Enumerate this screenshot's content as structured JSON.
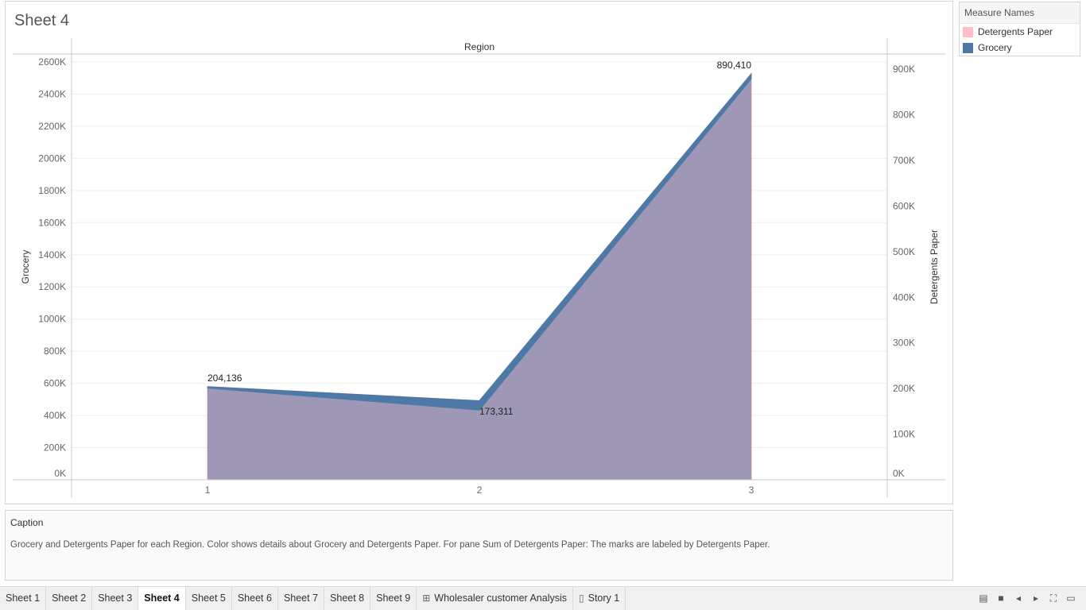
{
  "sheet": {
    "title": "Sheet 4"
  },
  "chart_data": {
    "type": "area",
    "title": "",
    "column_header": "Region",
    "x": [
      1,
      2,
      3
    ],
    "x_tick_labels": [
      "1",
      "2",
      "3"
    ],
    "y_left": {
      "label": "Grocery",
      "ylim": [
        0,
        2600000
      ],
      "ticks": [
        0,
        200000,
        400000,
        600000,
        800000,
        1000000,
        1200000,
        1400000,
        1600000,
        1800000,
        2000000,
        2200000,
        2400000,
        2600000
      ],
      "tick_labels": [
        "0K",
        "200K",
        "400K",
        "600K",
        "800K",
        "1000K",
        "1200K",
        "1400K",
        "1600K",
        "1800K",
        "2000K",
        "2200K",
        "2400K",
        "2600K"
      ]
    },
    "y_right": {
      "label": "Detergents Paper",
      "ylim": [
        0,
        930000
      ],
      "ticks": [
        0,
        100000,
        200000,
        300000,
        400000,
        500000,
        600000,
        700000,
        800000,
        900000
      ],
      "tick_labels": [
        "0K",
        "100K",
        "200K",
        "300K",
        "400K",
        "500K",
        "600K",
        "700K",
        "800K",
        "900K"
      ]
    },
    "series": [
      {
        "name": "Detergents Paper",
        "axis": "right",
        "color": "#ffbec7",
        "values": [
          204136,
          173311,
          890410
        ],
        "data_labels": [
          "204,136",
          "173,311",
          "890,410"
        ]
      },
      {
        "name": "Grocery",
        "axis": "left",
        "color": "#4e79a7",
        "values": [
          570037,
          433274,
          2495251
        ]
      }
    ],
    "grid": true,
    "legend_position": "right"
  },
  "legend": {
    "title": "Measure Names",
    "items": [
      {
        "label": "Detergents Paper",
        "color": "#ffbec7"
      },
      {
        "label": "Grocery",
        "color": "#4e79a7"
      }
    ]
  },
  "caption": {
    "title": "Caption",
    "text": "Grocery and Detergents Paper for each Region.  Color shows details about Grocery and Detergents Paper.  For pane Sum of Detergents Paper:  The marks are labeled by Detergents Paper."
  },
  "tabs": [
    {
      "label": "Sheet 1",
      "active": false
    },
    {
      "label": "Sheet 2",
      "active": false
    },
    {
      "label": "Sheet 3",
      "active": false
    },
    {
      "label": "Sheet 4",
      "active": true
    },
    {
      "label": "Sheet 5",
      "active": false
    },
    {
      "label": "Sheet 6",
      "active": false
    },
    {
      "label": "Sheet 7",
      "active": false
    },
    {
      "label": "Sheet 8",
      "active": false
    },
    {
      "label": "Sheet 9",
      "active": false
    },
    {
      "label": "Wholesaler customer Analysis",
      "active": false,
      "icon": "dashboard-icon"
    },
    {
      "label": "Story 1",
      "active": false,
      "icon": "story-icon"
    }
  ],
  "nav_icons": [
    "show-filmstrip-icon",
    "show-tabs-icon",
    "previous-sheet-icon",
    "next-sheet-icon",
    "fit-screen-icon",
    "presentation-mode-icon"
  ]
}
